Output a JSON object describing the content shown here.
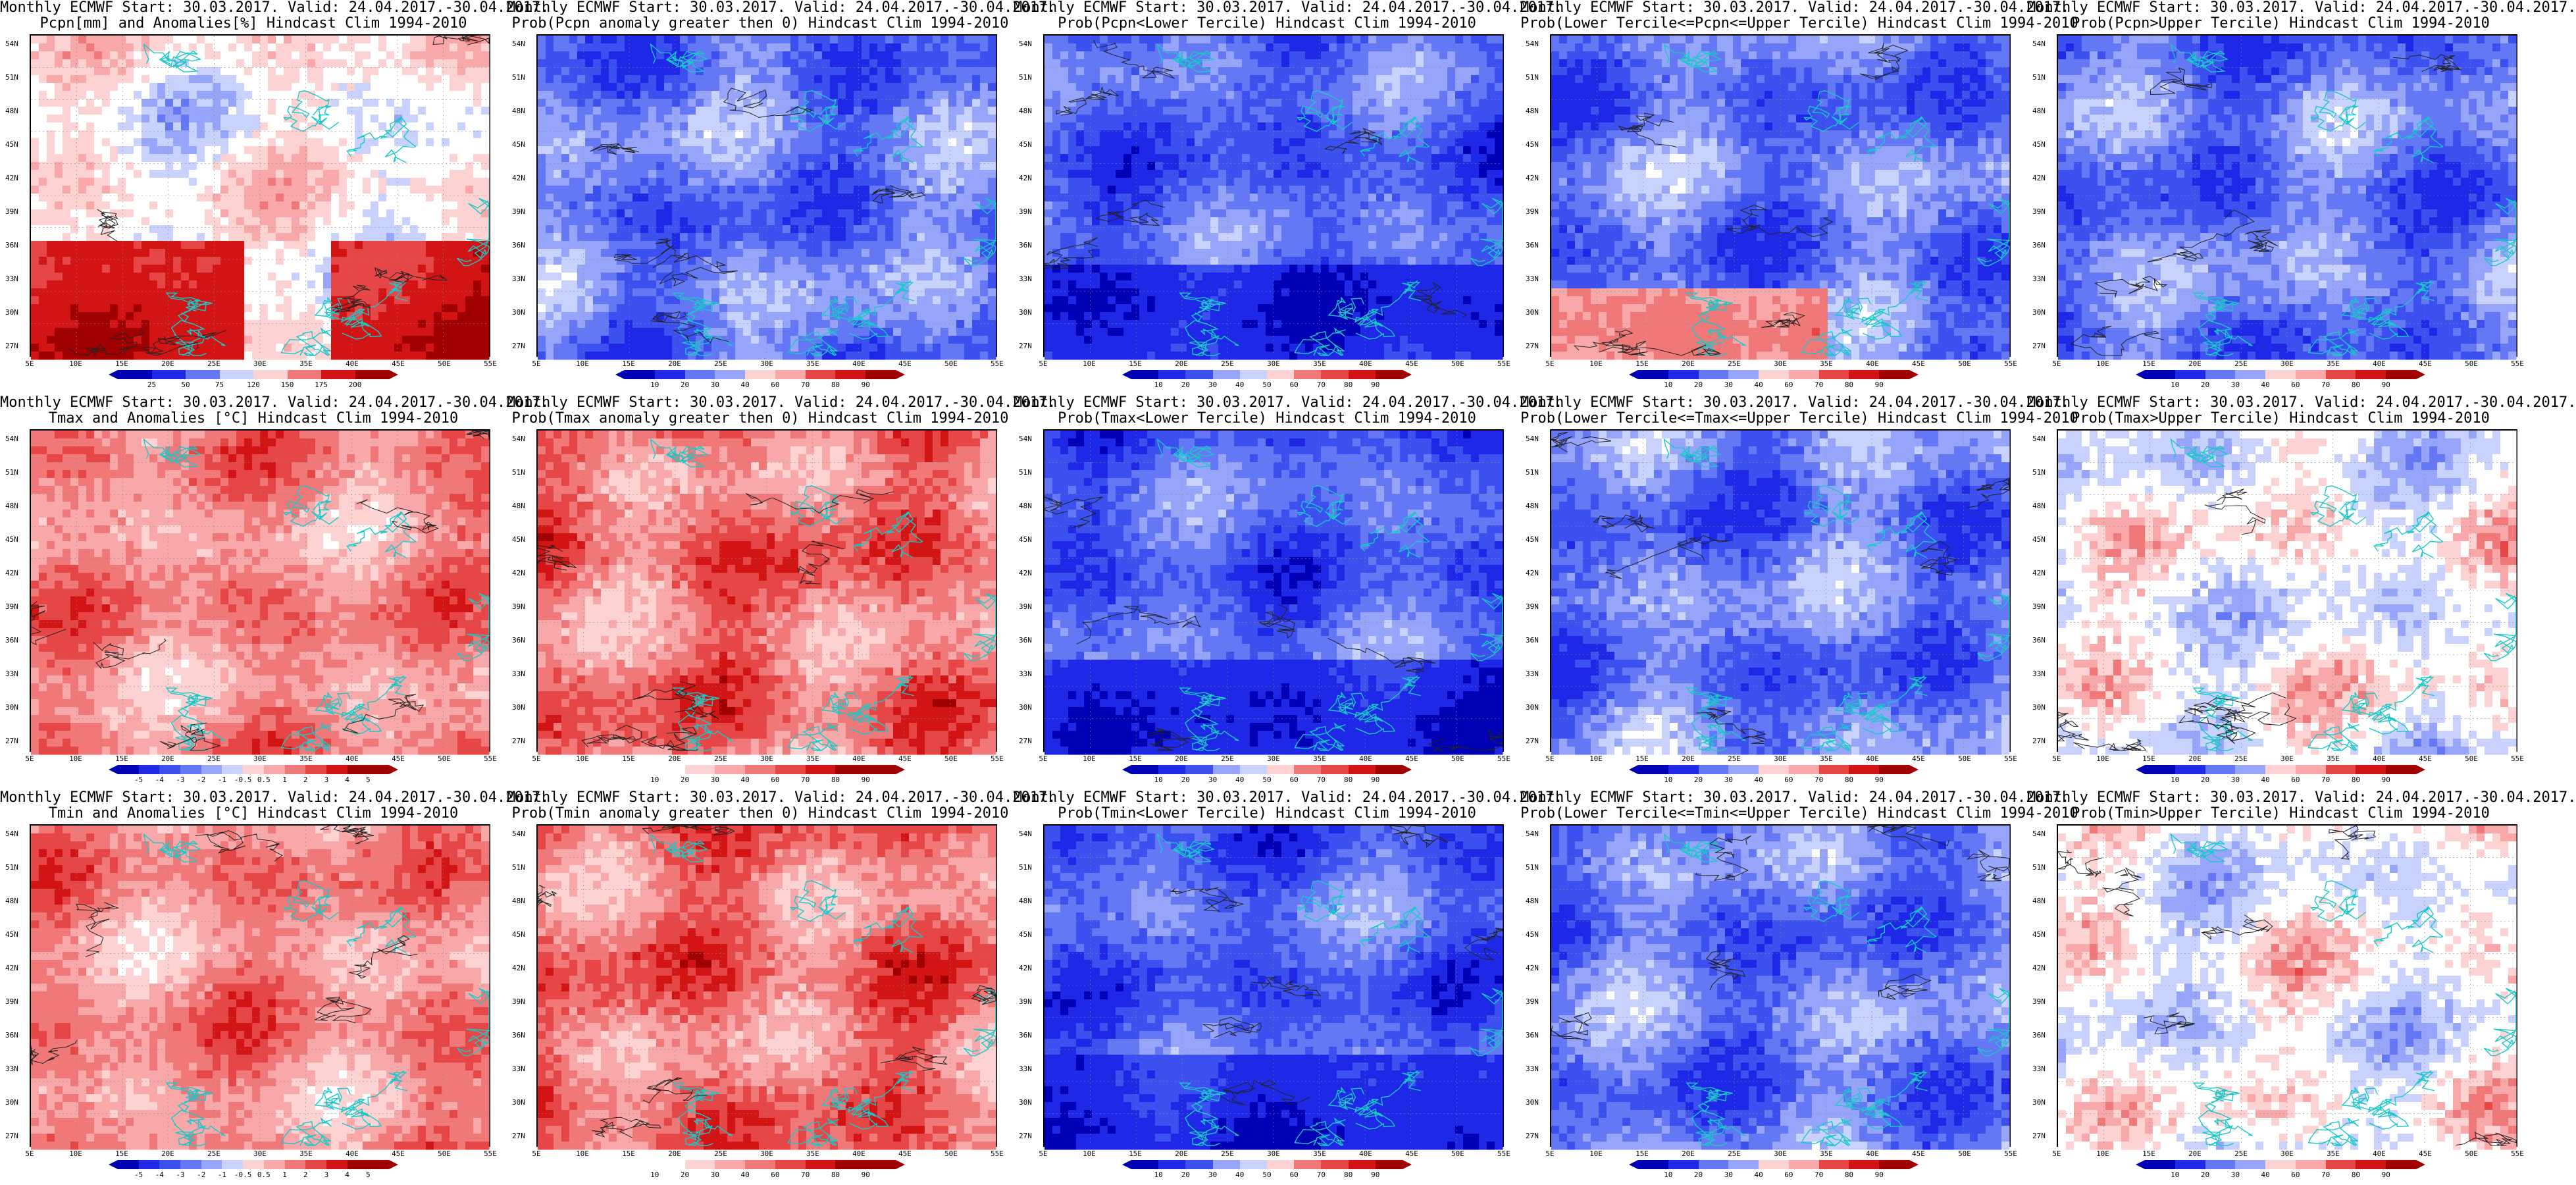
{
  "panels": [
    {
      "line1": "Monthly ECMWF Start: 30.03.2017. Valid: 24.04.2017.-30.04.2017.",
      "line2": "Pcpn[mm] and Anomalies[%] Hindcast Clim 1994-2010",
      "scheme": "anom_pcp",
      "colorbar": [
        "25",
        "50",
        "75",
        "120",
        "150",
        "175",
        "200"
      ]
    },
    {
      "line1": "Monthly ECMWF Start: 30.03.2017. Valid: 24.04.2017.-30.04.2017.",
      "line2": "Prob(Pcpn anomaly greater then 0) Hindcast Clim 1994-2010",
      "scheme": "blue",
      "colorbar": [
        "10",
        "20",
        "30",
        "40",
        "60",
        "70",
        "80",
        "90"
      ]
    },
    {
      "line1": "Monthly ECMWF Start: 30.03.2017. Valid: 24.04.2017.-30.04.2017.",
      "line2": "Prob(Pcpn<Lower Tercile) Hindcast Clim 1994-2010",
      "scheme": "deepblue",
      "colorbar": [
        "10",
        "20",
        "30",
        "40",
        "50",
        "60",
        "70",
        "80",
        "90"
      ]
    },
    {
      "line1": "Monthly ECMWF Start: 30.03.2017. Valid: 24.04.2017.-30.04.2017.",
      "line2": "Prob(Lower Tercile<=Pcpn<=Upper Tercile) Hindcast Clim 1994-2010",
      "scheme": "mixed",
      "colorbar": [
        "10",
        "20",
        "30",
        "40",
        "60",
        "70",
        "80",
        "90"
      ]
    },
    {
      "line1": "Monthly ECMWF Start: 30.03.2017. Valid: 24.04.2017.-30.04.2017.",
      "line2": "Prob(Pcpn>Upper Tercile) Hindcast Clim 1994-2010",
      "scheme": "blue",
      "colorbar": [
        "10",
        "20",
        "30",
        "40",
        "60",
        "70",
        "80",
        "90"
      ]
    },
    {
      "line1": "Monthly ECMWF Start: 30.03.2017. Valid: 24.04.2017.-30.04.2017.",
      "line2": "Tmax and Anomalies [°C] Hindcast Clim 1994-2010",
      "scheme": "warm",
      "colorbar": [
        "-5",
        "-4",
        "-3",
        "-2",
        "-1",
        "-0.5",
        "0.5",
        "1",
        "2",
        "3",
        "4",
        "5"
      ]
    },
    {
      "line1": "Monthly ECMWF Start: 30.03.2017. Valid: 24.04.2017.-30.04.2017.",
      "line2": "Prob(Tmax anomaly greater then 0) Hindcast Clim 1994-2010",
      "scheme": "hot",
      "colorbar": [
        "10",
        "20",
        "30",
        "40",
        "60",
        "70",
        "80",
        "90"
      ]
    },
    {
      "line1": "Monthly ECMWF Start: 30.03.2017. Valid: 24.04.2017.-30.04.2017.",
      "line2": "Prob(Tmax<Lower Tercile) Hindcast Clim 1994-2010",
      "scheme": "deepblue",
      "colorbar": [
        "10",
        "20",
        "30",
        "40",
        "50",
        "60",
        "70",
        "80",
        "90"
      ]
    },
    {
      "line1": "Monthly ECMWF Start: 30.03.2017. Valid: 24.04.2017.-30.04.2017.",
      "line2": "Prob(Lower Tercile<=Tmax<=Upper Tercile) Hindcast Clim 1994-2010",
      "scheme": "blue",
      "colorbar": [
        "10",
        "20",
        "30",
        "40",
        "60",
        "70",
        "80",
        "90"
      ]
    },
    {
      "line1": "Monthly ECMWF Start: 30.03.2017. Valid: 24.04.2017.-30.04.2017.",
      "line2": "Prob(Tmax>Upper Tercile) Hindcast Clim 1994-2010",
      "scheme": "mixwarm",
      "colorbar": [
        "10",
        "20",
        "30",
        "40",
        "60",
        "70",
        "80",
        "90"
      ]
    },
    {
      "line1": "Monthly ECMWF Start: 30.03.2017. Valid: 24.04.2017.-30.04.2017.",
      "line2": "Tmin and Anomalies [°C] Hindcast Clim 1994-2010",
      "scheme": "warm",
      "colorbar": [
        "-5",
        "-4",
        "-3",
        "-2",
        "-1",
        "-0.5",
        "0.5",
        "1",
        "2",
        "3",
        "4",
        "5"
      ]
    },
    {
      "line1": "Monthly ECMWF Start: 30.03.2017. Valid: 24.04.2017.-30.04.2017.",
      "line2": "Prob(Tmin anomaly greater then 0) Hindcast Clim 1994-2010",
      "scheme": "hot",
      "colorbar": [
        "10",
        "20",
        "30",
        "40",
        "60",
        "70",
        "80",
        "90"
      ]
    },
    {
      "line1": "Monthly ECMWF Start: 30.03.2017. Valid: 24.04.2017.-30.04.2017.",
      "line2": "Prob(Tmin<Lower Tercile) Hindcast Clim 1994-2010",
      "scheme": "deepblue",
      "colorbar": [
        "10",
        "20",
        "30",
        "40",
        "50",
        "60",
        "70",
        "80",
        "90"
      ]
    },
    {
      "line1": "Monthly ECMWF Start: 30.03.2017. Valid: 24.04.2017.-30.04.2017.",
      "line2": "Prob(Lower Tercile<=Tmin<=Upper Tercile) Hindcast Clim 1994-2010",
      "scheme": "blue",
      "colorbar": [
        "10",
        "20",
        "30",
        "40",
        "60",
        "70",
        "80",
        "90"
      ]
    },
    {
      "line1": "Monthly ECMWF Start: 30.03.2017. Valid: 24.04.2017.-30.04.2017.",
      "line2": "Prob(Tmin>Upper Tercile) Hindcast Clim 1994-2010",
      "scheme": "mixwarm",
      "colorbar": [
        "10",
        "20",
        "30",
        "40",
        "60",
        "70",
        "80",
        "90"
      ]
    }
  ],
  "lat_labels": [
    "54N",
    "51N",
    "48N",
    "45N",
    "42N",
    "39N",
    "36N",
    "33N",
    "30N",
    "27N"
  ],
  "lon_labels": [
    "5E",
    "10E",
    "15E",
    "20E",
    "25E",
    "30E",
    "35E",
    "40E",
    "45E",
    "50E",
    "55E"
  ],
  "colors": {
    "coast": "#19c8c8",
    "blue_scale": [
      "#0000b4",
      "#1e28e6",
      "#3c50f0",
      "#6478f5",
      "#96a5fa",
      "#c8d2fc",
      "#ffffff"
    ],
    "red_scale": [
      "#ffffff",
      "#fcd2d2",
      "#f8a8a8",
      "#f07878",
      "#e64646",
      "#d21414",
      "#a00000"
    ]
  }
}
